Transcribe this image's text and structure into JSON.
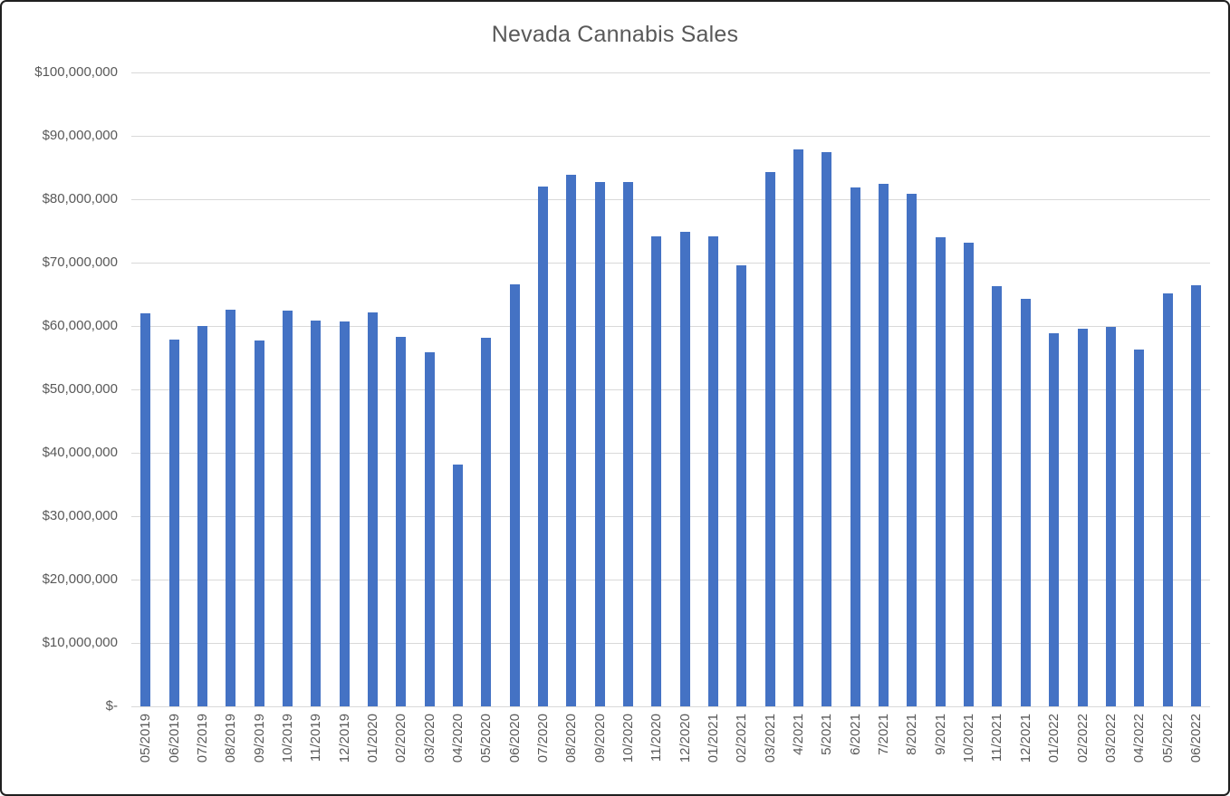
{
  "window": {
    "background_color": "#ffffff",
    "border_color": "#1f1f1f"
  },
  "chart_data": {
    "type": "bar",
    "title": "Nevada Cannabis Sales",
    "xlabel": "",
    "ylabel": "",
    "legend": "none",
    "grid": true,
    "ylim": [
      0,
      100000000
    ],
    "categories": [
      "05/2019",
      "06/2019",
      "07/2019",
      "08/2019",
      "09/2019",
      "10/2019",
      "11/2019",
      "12/2019",
      "01/2020",
      "02/2020",
      "03/2020",
      "04/2020",
      "05/2020",
      "06/2020",
      "07/2020",
      "08/2020",
      "09/2020",
      "10/2020",
      "11/2020",
      "12/2020",
      "01/2021",
      "02/2021",
      "03/2021",
      "4/2021",
      "5/2021",
      "6/2021",
      "7/2021",
      "8/2021",
      "9/2021",
      "10/2021",
      "11/2021",
      "12/2021",
      "01/2022",
      "02/2022",
      "03/2022",
      "04/2022",
      "05/2022",
      "06/2022"
    ],
    "values": [
      62000000,
      57900000,
      60000000,
      62600000,
      57700000,
      62500000,
      60800000,
      60700000,
      62200000,
      58300000,
      55900000,
      38200000,
      58200000,
      66600000,
      82000000,
      83800000,
      82700000,
      82700000,
      74200000,
      74900000,
      74200000,
      69600000,
      84300000,
      87900000,
      87500000,
      81800000,
      82500000,
      80900000,
      74000000,
      73100000,
      66300000,
      64300000,
      58800000,
      59600000,
      59800000,
      56300000,
      65200000,
      66400000
    ],
    "y_tick_values": [
      100000000,
      90000000,
      80000000,
      70000000,
      60000000,
      50000000,
      40000000,
      30000000,
      20000000,
      10000000,
      0
    ],
    "y_tick_labels": [
      "$100,000,000",
      "$90,000,000",
      "$80,000,000",
      "$70,000,000",
      "$60,000,000",
      "$50,000,000",
      "$40,000,000",
      "$30,000,000",
      "$20,000,000",
      "$10,000,000",
      "$-"
    ],
    "bar_color": "#4472c4",
    "gridline_color": "#d9d9d9",
    "text_color": "#595959"
  }
}
